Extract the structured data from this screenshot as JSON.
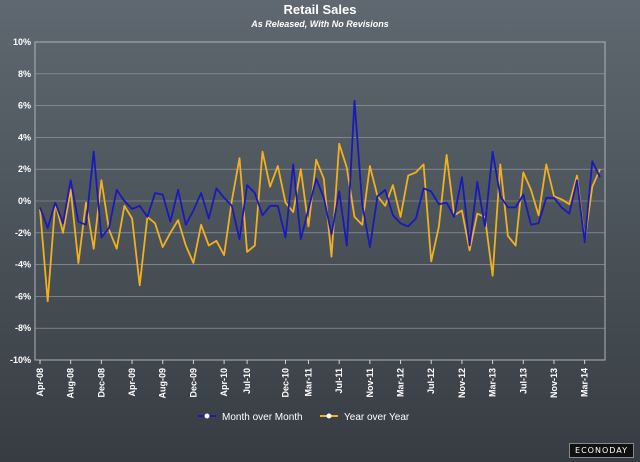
{
  "chart_data": {
    "type": "line",
    "title": "Retail Sales",
    "subtitle": "As Released, With No Revisions",
    "xlabel": "",
    "ylabel": "",
    "ylim": [
      -10,
      10
    ],
    "y_ticks": [
      "10%",
      "8%",
      "6%",
      "4%",
      "2%",
      "0%",
      "-2%",
      "-4%",
      "-6%",
      "-8%",
      "-10%"
    ],
    "x_tick_labels": [
      "Apr-08",
      "Aug-08",
      "Dec-08",
      "Apr-09",
      "Aug-09",
      "Dec-09",
      "Apr-10",
      "Jul-10",
      "Dec-10",
      "Mar-11",
      "Jul-11",
      "Nov-11",
      "Mar-12",
      "Jul-12",
      "Nov-12",
      "Mar-13",
      "Jul-13",
      "Nov-13",
      "Mar-14"
    ],
    "x_tick_indices": [
      0,
      4,
      8,
      12,
      16,
      20,
      24,
      27,
      32,
      35,
      39,
      43,
      47,
      51,
      55,
      59,
      63,
      67,
      71
    ],
    "series": [
      {
        "name": "Month over Month",
        "color": "#1a1ab8",
        "values": [
          -0.4,
          -1.7,
          -0.1,
          -1.4,
          1.3,
          -1.3,
          -1.5,
          3.1,
          -2.3,
          -1.7,
          0.7,
          0.0,
          -0.5,
          -0.3,
          -1.0,
          0.5,
          0.4,
          -1.3,
          0.7,
          -1.5,
          -0.6,
          0.5,
          -1.1,
          0.8,
          0.2,
          -0.3,
          -2.4,
          1.0,
          0.5,
          -0.9,
          -0.3,
          -0.3,
          -2.3,
          2.3,
          -2.4,
          -0.5,
          1.4,
          0.2,
          -2.1,
          0.6,
          -2.8,
          6.3,
          -0.2,
          -2.9,
          0.3,
          0.7,
          -0.9,
          -1.4,
          -1.6,
          -1.1,
          0.8,
          0.6,
          -0.2,
          -0.1,
          -1.0,
          1.5,
          -2.8,
          1.2,
          -1.6,
          3.1,
          0.3,
          -0.4,
          -0.4,
          0.4,
          -1.5,
          -1.4,
          0.2,
          0.2,
          -0.4,
          -0.8,
          1.3,
          -2.6,
          2.5,
          1.5
        ]
      },
      {
        "name": "Year over Year",
        "color": "#f0b020",
        "values": [
          -0.5,
          -6.3,
          -0.1,
          -2.0,
          0.7,
          -3.9,
          -0.1,
          -3.0,
          1.3,
          -1.8,
          -3.0,
          -0.3,
          -1.1,
          -5.3,
          -1.0,
          -1.4,
          -2.9,
          -2.0,
          -1.2,
          -2.8,
          -3.9,
          -1.5,
          -2.8,
          -2.5,
          -3.4,
          0.0,
          2.7,
          -3.2,
          -2.8,
          3.1,
          0.9,
          2.2,
          -0.1,
          -0.7,
          2.0,
          -1.6,
          2.6,
          1.4,
          -3.5,
          3.6,
          2.1,
          -1.0,
          -1.5,
          2.2,
          0.3,
          -0.3,
          1.0,
          -1.0,
          1.6,
          1.8,
          2.3,
          -3.8,
          -1.6,
          2.9,
          -0.9,
          -0.6,
          -3.1,
          -0.8,
          -1.0,
          -4.7,
          2.3,
          -2.2,
          -2.8,
          1.8,
          0.7,
          -0.9,
          2.3,
          0.3,
          0.1,
          -0.2,
          1.6,
          -2.5,
          0.9,
          2.0
        ]
      }
    ],
    "legend_position": "bottom-center"
  },
  "brand": "ECONODAY"
}
